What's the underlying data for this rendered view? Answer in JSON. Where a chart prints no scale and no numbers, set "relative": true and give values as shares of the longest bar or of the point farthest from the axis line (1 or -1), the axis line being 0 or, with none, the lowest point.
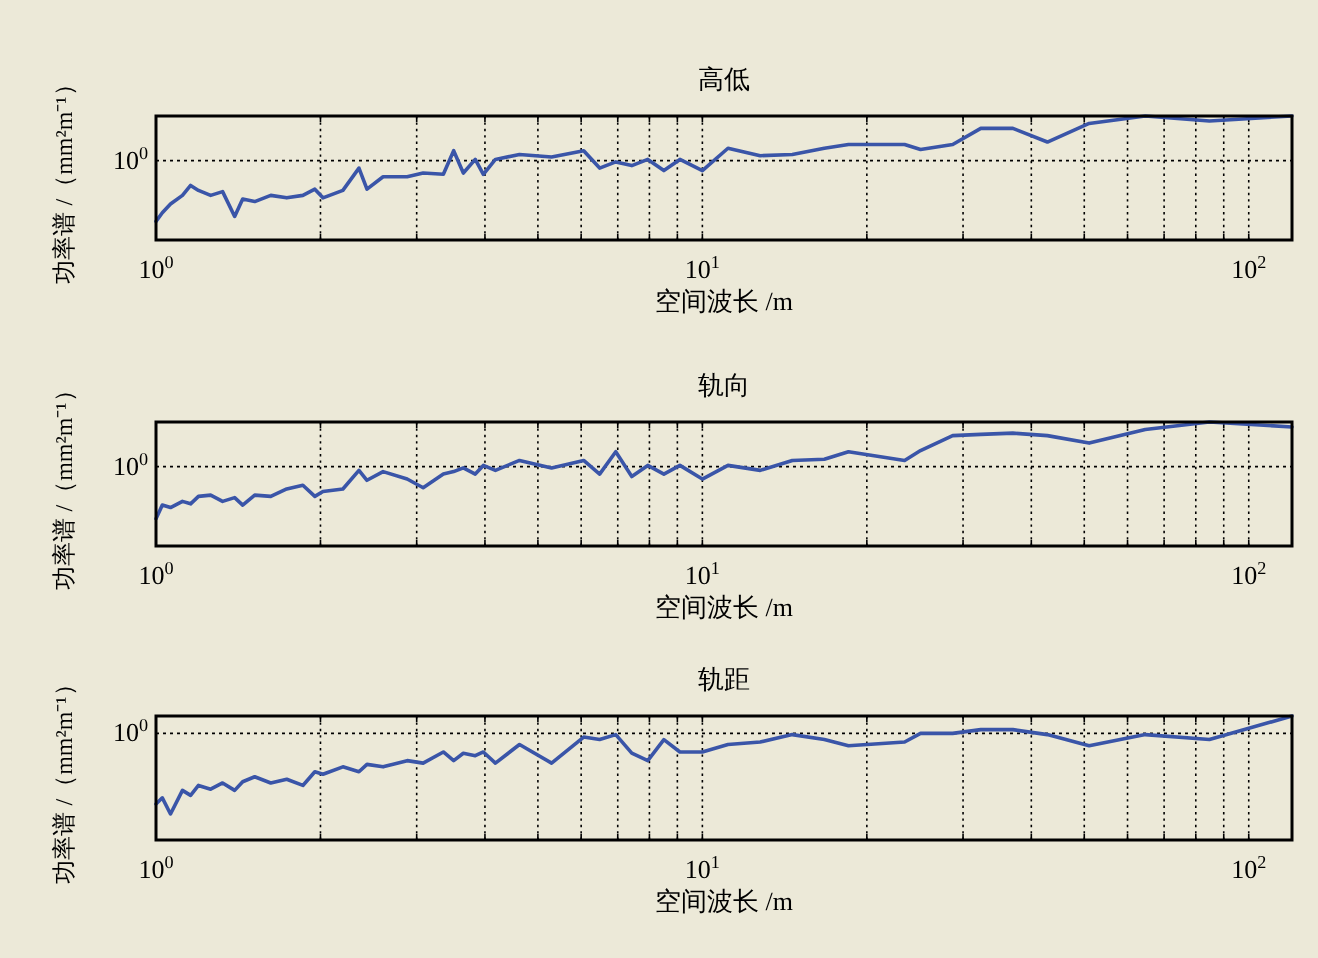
{
  "chart_data": [
    {
      "type": "line",
      "title": "高低",
      "xlabel": "空间波长 /m",
      "ylabel": "功率谱 /（mm²m⁻¹）",
      "relative": true,
      "log": "x",
      "grid": "x",
      "color": "#3a55a8",
      "xlim": [
        1,
        120
      ],
      "xticks": [
        {
          "value": 1,
          "label": "10$^{0}$"
        },
        {
          "value": 2,
          "label": null
        },
        {
          "value": 3,
          "label": null
        },
        {
          "value": 4,
          "label": null
        },
        {
          "value": 5,
          "label": null
        },
        {
          "value": 6,
          "label": null
        },
        {
          "value": 7,
          "label": null
        },
        {
          "value": 8,
          "label": null
        },
        {
          "value": 9,
          "label": null
        },
        {
          "value": 10,
          "label": "10$^{1}$"
        },
        {
          "value": 20,
          "label": null
        },
        {
          "value": 30,
          "label": null
        },
        {
          "value": 40,
          "label": null
        },
        {
          "value": 50,
          "label": null
        },
        {
          "value": 60,
          "label": null
        },
        {
          "value": 70,
          "label": null
        },
        {
          "value": 80,
          "label": null
        },
        {
          "value": 90,
          "label": null
        },
        {
          "value": 100,
          "label": "10$^{2}$"
        }
      ],
      "ref_lines": [
        {
          "axis": "y",
          "value": 0.64
        }
      ],
      "annotations": [
        "10$^{0}$"
      ],
      "x": [
        1,
        1.027,
        1.063,
        1.118,
        1.157,
        1.196,
        1.259,
        1.324,
        1.393,
        1.441,
        1.516,
        1.622,
        1.735,
        1.857,
        1.953,
        2.021,
        2.198,
        2.352,
        2.433,
        2.604,
        2.882,
        3.083,
        3.357,
        3.506,
        3.652,
        3.84,
        3.973,
        4.18,
        4.627,
        5.297,
        6.064,
        6.486,
        6.942,
        7.427,
        7.945,
        8.503,
        9.097,
        10.0,
        11.14,
        12.76,
        14.61,
        16.72,
        18.51,
        23.45,
        25.08,
        28.72,
        32.33,
        37.01,
        42.8,
        51.04,
        64.66,
        84.72,
        120
      ],
      "values": [
        0.15,
        0.22,
        0.29,
        0.36,
        0.44,
        0.4,
        0.36,
        0.39,
        0.19,
        0.33,
        0.31,
        0.36,
        0.34,
        0.36,
        0.41,
        0.34,
        0.4,
        0.58,
        0.41,
        0.51,
        0.51,
        0.54,
        0.53,
        0.72,
        0.54,
        0.65,
        0.53,
        0.65,
        0.69,
        0.67,
        0.72,
        0.58,
        0.63,
        0.6,
        0.65,
        0.56,
        0.65,
        0.56,
        0.74,
        0.68,
        0.69,
        0.74,
        0.77,
        0.77,
        0.73,
        0.77,
        0.9,
        0.9,
        0.79,
        0.94,
        1.0,
        0.96,
        1.0
      ]
    },
    {
      "type": "line",
      "title": "轨向",
      "xlabel": "空间波长 /m",
      "ylabel": "功率谱 /（mm²m⁻¹）",
      "relative": true,
      "log": "x",
      "grid": "x",
      "color": "#3a55a8",
      "xlim": [
        1,
        120
      ],
      "xticks": [
        {
          "value": 1,
          "label": "10$^{0}$"
        },
        {
          "value": 2,
          "label": null
        },
        {
          "value": 3,
          "label": null
        },
        {
          "value": 4,
          "label": null
        },
        {
          "value": 5,
          "label": null
        },
        {
          "value": 6,
          "label": null
        },
        {
          "value": 7,
          "label": null
        },
        {
          "value": 8,
          "label": null
        },
        {
          "value": 9,
          "label": null
        },
        {
          "value": 10,
          "label": "10$^{1}$"
        },
        {
          "value": 20,
          "label": null
        },
        {
          "value": 30,
          "label": null
        },
        {
          "value": 40,
          "label": null
        },
        {
          "value": 50,
          "label": null
        },
        {
          "value": 60,
          "label": null
        },
        {
          "value": 70,
          "label": null
        },
        {
          "value": 80,
          "label": null
        },
        {
          "value": 90,
          "label": null
        },
        {
          "value": 100,
          "label": "10$^{2}$"
        }
      ],
      "ref_lines": [
        {
          "axis": "y",
          "value": 0.64
        }
      ],
      "annotations": [
        "10$^{0}$"
      ],
      "x": [
        1,
        1.027,
        1.063,
        1.118,
        1.157,
        1.196,
        1.259,
        1.324,
        1.393,
        1.441,
        1.516,
        1.622,
        1.735,
        1.857,
        1.953,
        2.021,
        2.198,
        2.352,
        2.433,
        2.604,
        2.882,
        3.083,
        3.357,
        3.506,
        3.652,
        3.84,
        3.973,
        4.18,
        4.627,
        5.297,
        6.064,
        6.486,
        6.942,
        7.427,
        7.945,
        8.503,
        9.097,
        10.0,
        11.14,
        12.76,
        14.61,
        16.72,
        18.51,
        23.45,
        25.08,
        28.72,
        32.33,
        37.01,
        42.8,
        51.04,
        64.66,
        84.72,
        120
      ],
      "values": [
        0.22,
        0.33,
        0.31,
        0.36,
        0.34,
        0.4,
        0.41,
        0.36,
        0.39,
        0.33,
        0.41,
        0.4,
        0.46,
        0.49,
        0.4,
        0.44,
        0.46,
        0.61,
        0.53,
        0.6,
        0.54,
        0.47,
        0.58,
        0.6,
        0.63,
        0.58,
        0.65,
        0.61,
        0.69,
        0.63,
        0.69,
        0.58,
        0.76,
        0.56,
        0.65,
        0.58,
        0.65,
        0.54,
        0.65,
        0.61,
        0.69,
        0.7,
        0.76,
        0.69,
        0.77,
        0.89,
        0.9,
        0.91,
        0.89,
        0.83,
        0.94,
        1.0,
        0.96
      ]
    },
    {
      "type": "line",
      "title": "轨距",
      "xlabel": "空间波长 /m",
      "ylabel": "功率谱 /（mm²m⁻¹）",
      "relative": true,
      "log": "x",
      "grid": "x",
      "color": "#3a55a8",
      "xlim": [
        1,
        120
      ],
      "xticks": [
        {
          "value": 1,
          "label": "10$^{0}$"
        },
        {
          "value": 2,
          "label": null
        },
        {
          "value": 3,
          "label": null
        },
        {
          "value": 4,
          "label": null
        },
        {
          "value": 5,
          "label": null
        },
        {
          "value": 6,
          "label": null
        },
        {
          "value": 7,
          "label": null
        },
        {
          "value": 8,
          "label": null
        },
        {
          "value": 9,
          "label": null
        },
        {
          "value": 10,
          "label": "10$^{1}$"
        },
        {
          "value": 20,
          "label": null
        },
        {
          "value": 30,
          "label": null
        },
        {
          "value": 40,
          "label": null
        },
        {
          "value": 50,
          "label": null
        },
        {
          "value": 60,
          "label": null
        },
        {
          "value": 70,
          "label": null
        },
        {
          "value": 80,
          "label": null
        },
        {
          "value": 90,
          "label": null
        },
        {
          "value": 100,
          "label": "10$^{2}$"
        }
      ],
      "ref_lines": [
        {
          "axis": "y",
          "value": 0.86
        }
      ],
      "annotations": [
        "10$^{0}$"
      ],
      "x": [
        1,
        1.027,
        1.063,
        1.118,
        1.157,
        1.196,
        1.259,
        1.324,
        1.393,
        1.441,
        1.516,
        1.622,
        1.735,
        1.857,
        1.953,
        2.021,
        2.198,
        2.352,
        2.433,
        2.604,
        2.882,
        3.083,
        3.357,
        3.506,
        3.652,
        3.84,
        3.973,
        4.18,
        4.627,
        5.297,
        6.064,
        6.486,
        6.942,
        7.427,
        7.945,
        8.503,
        9.097,
        10.0,
        11.14,
        12.76,
        14.61,
        16.72,
        18.51,
        23.45,
        25.08,
        28.72,
        32.33,
        37.01,
        42.8,
        51.04,
        64.66,
        84.72,
        120
      ],
      "values": [
        0.29,
        0.34,
        0.21,
        0.4,
        0.36,
        0.44,
        0.41,
        0.46,
        0.4,
        0.47,
        0.51,
        0.46,
        0.49,
        0.44,
        0.55,
        0.53,
        0.59,
        0.55,
        0.61,
        0.59,
        0.64,
        0.62,
        0.71,
        0.64,
        0.7,
        0.68,
        0.71,
        0.62,
        0.77,
        0.62,
        0.83,
        0.81,
        0.85,
        0.7,
        0.64,
        0.81,
        0.71,
        0.71,
        0.77,
        0.79,
        0.85,
        0.81,
        0.76,
        0.79,
        0.86,
        0.86,
        0.89,
        0.89,
        0.85,
        0.76,
        0.85,
        0.81,
        1.0
      ]
    }
  ]
}
